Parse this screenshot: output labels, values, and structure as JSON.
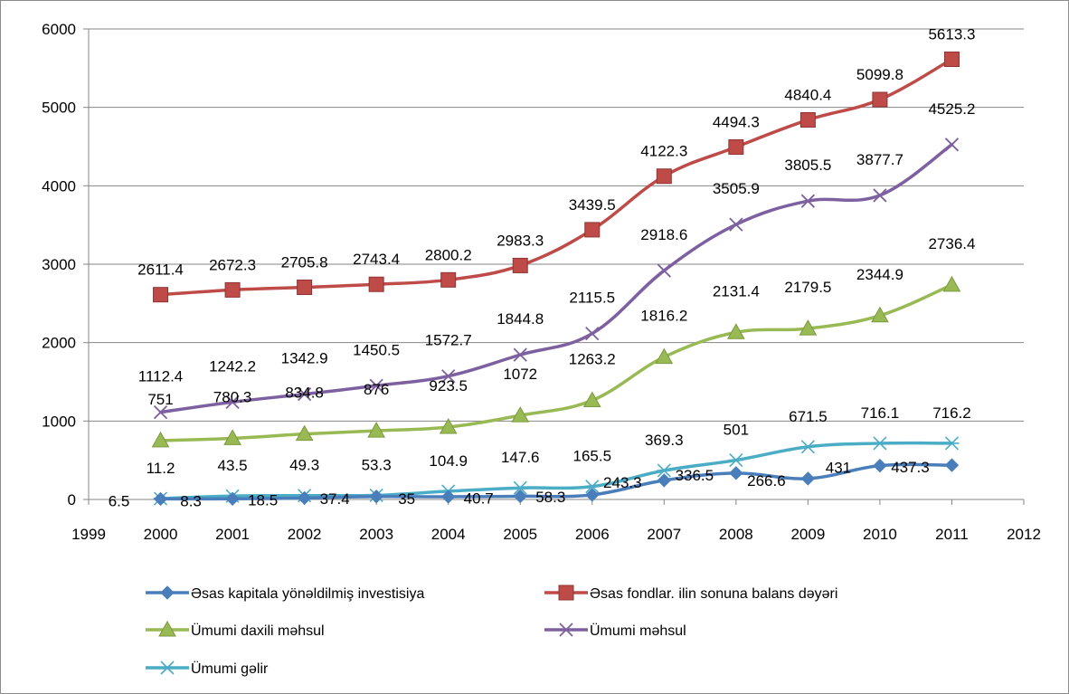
{
  "chart_data": {
    "type": "line",
    "title": "",
    "xlabel": "",
    "ylabel": "",
    "xlim": [
      1999,
      2012
    ],
    "ylim": [
      0,
      6000
    ],
    "xticks": [
      1999,
      2000,
      2001,
      2002,
      2003,
      2004,
      2005,
      2006,
      2007,
      2008,
      2009,
      2010,
      2011,
      2012
    ],
    "yticks": [
      0,
      1000,
      2000,
      3000,
      4000,
      5000,
      6000
    ],
    "grid": "horizontal",
    "legend_position": "bottom",
    "x": [
      2000,
      2001,
      2002,
      2003,
      2004,
      2005,
      2006,
      2007,
      2008,
      2009,
      2010,
      2011
    ],
    "series": [
      {
        "name": "Əsas kapitala yönəldilmiş investisiya",
        "color": "#4a7ebb",
        "marker": "diamond",
        "values": [
          6.5,
          8.3,
          18.5,
          37.4,
          35,
          40.7,
          58.3,
          243.3,
          336.5,
          266.6,
          431,
          437.3
        ],
        "labels": [
          "6.5",
          "8.3",
          "18.5",
          "37.4",
          "35",
          "40.7",
          "58.3",
          "243.3",
          "336.5",
          "266.6",
          "431",
          "437.3"
        ]
      },
      {
        "name": "Əsas fondlar. ilin sonuna balans dəyəri",
        "color": "#be4b48",
        "marker": "square",
        "values": [
          2611.4,
          2672.3,
          2705.8,
          2743.4,
          2800.2,
          2983.3,
          3439.5,
          4122.3,
          4494.3,
          4840.4,
          5099.8,
          5613.3
        ],
        "labels": [
          "2611.4",
          "2672.3",
          "2705.8",
          "2743.4",
          "2800.2",
          "2983.3",
          "3439.5",
          "4122.3",
          "4494.3",
          "4840.4",
          "5099.8",
          "5613.3"
        ]
      },
      {
        "name": "Ümumi daxili məhsul",
        "color": "#98b954",
        "marker": "triangle",
        "values": [
          751,
          780.3,
          834.8,
          876,
          923.5,
          1072,
          1263.2,
          1816.2,
          2131.4,
          2179.5,
          2344.9,
          2736.4
        ],
        "labels": [
          "751",
          "780.3",
          "834.8",
          "876",
          "923.5",
          "1072",
          "1263.2",
          "1816.2",
          "2131.4",
          "2179.5",
          "2344.9",
          "2736.4"
        ]
      },
      {
        "name": "Ümumi məhsul",
        "color": "#7d60a0",
        "marker": "x",
        "values": [
          1112.4,
          1242.2,
          1342.9,
          1450.5,
          1572.7,
          1844.8,
          2115.5,
          2918.6,
          3505.9,
          3805.5,
          3877.7,
          4525.2
        ],
        "labels": [
          "1112.4",
          "1242.2",
          "1342.9",
          "1450.5",
          "1572.7",
          "1844.8",
          "2115.5",
          "2918.6",
          "3505.9",
          "3805.5",
          "3877.7",
          "4525.2"
        ]
      },
      {
        "name": "Ümumi gəlir",
        "color": "#4bacc6",
        "marker": "star",
        "values": [
          11.2,
          43.5,
          49.3,
          53.3,
          104.9,
          147.6,
          165.5,
          369.3,
          501,
          671.5,
          716.1,
          716.2
        ],
        "labels": [
          "11.2",
          "43.5",
          "49.3",
          "53.3",
          "104.9",
          "147.6",
          "165.5",
          "369.3",
          "501",
          "671.5",
          "716.1",
          "716.2"
        ]
      }
    ]
  }
}
